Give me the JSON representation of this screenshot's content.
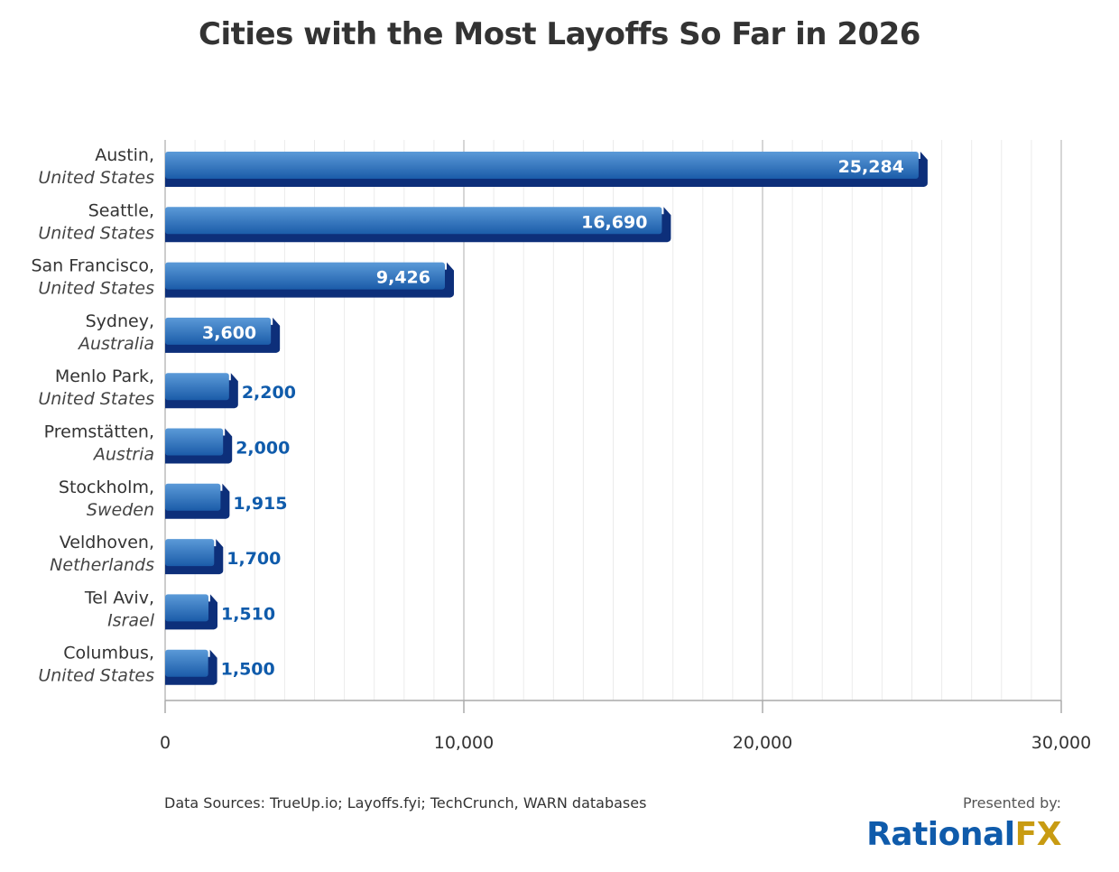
{
  "chart_data": {
    "type": "bar",
    "orientation": "horizontal",
    "title": "Cities with the Most Layoffs So Far in 2026",
    "categories": [
      {
        "city": "Austin,",
        "country": "United States"
      },
      {
        "city": "Seattle,",
        "country": "United States"
      },
      {
        "city": "San Francisco,",
        "country": "United States"
      },
      {
        "city": "Sydney,",
        "country": "Australia"
      },
      {
        "city": "Menlo Park,",
        "country": "United States"
      },
      {
        "city": "Premstätten,",
        "country": "Austria"
      },
      {
        "city": "Stockholm,",
        "country": "Sweden"
      },
      {
        "city": "Veldhoven,",
        "country": "Netherlands"
      },
      {
        "city": "Tel Aviv,",
        "country": "Israel"
      },
      {
        "city": "Columbus,",
        "country": "United States"
      }
    ],
    "values": [
      25284,
      16690,
      9426,
      3600,
      2200,
      2000,
      1915,
      1700,
      1510,
      1500
    ],
    "value_labels": [
      "25,284",
      "16,690",
      "9,426",
      "3,600",
      "2,200",
      "2,000",
      "1,915",
      "1,700",
      "1,510",
      "1,500"
    ],
    "xlim": [
      0,
      30000
    ],
    "x_ticks": [
      0,
      10000,
      20000,
      30000
    ],
    "x_tick_labels": [
      "0",
      "10,000",
      "20,000",
      "30,000"
    ],
    "grid": true,
    "colors": {
      "bar_top": "#4a8bd0",
      "bar_bottom": "#1a5aa8",
      "bar_shadow": "#0d2f7a",
      "label_outside": "#0f5bab",
      "text": "#333333"
    }
  },
  "footer": {
    "source": "Data Sources: TrueUp.io; Layoffs.fyi; TechCrunch, WARN databases",
    "presented_by": "Presented by:",
    "logo_part1": "Rational",
    "logo_part2": "FX"
  }
}
